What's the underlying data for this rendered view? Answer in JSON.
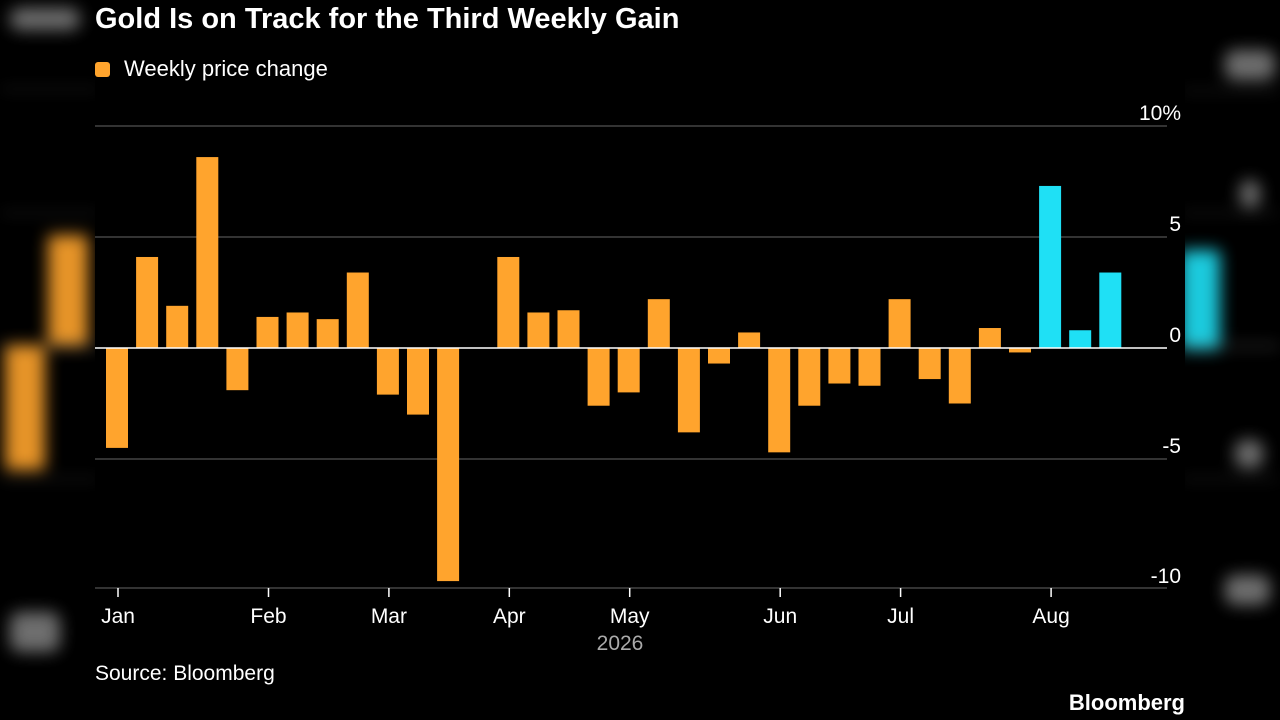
{
  "title": "Gold Is on Track for the Third Weekly Gain",
  "legend": {
    "label": "Weekly price change",
    "color": "#ffa42d"
  },
  "source": "Source: Bloomberg",
  "brand": "Bloomberg",
  "colors": {
    "positive_past": "#ffa42d",
    "highlight": "#1fe0f5",
    "grid": "#666666",
    "axis": "#ffffff",
    "text": "#ffffff",
    "muted_text": "#aaaaaa",
    "background": "#000000"
  },
  "chart_data": {
    "type": "bar",
    "title": "Gold Is on Track for the Third Weekly Gain",
    "xlabel": "2026",
    "ylabel": "",
    "ylim": [
      -10.5,
      10
    ],
    "y_ticks": [
      {
        "value": 10,
        "label": "10%"
      },
      {
        "value": 5,
        "label": "5"
      },
      {
        "value": 0,
        "label": "0"
      },
      {
        "value": -5,
        "label": "-5"
      },
      {
        "value": -10,
        "label": "-10"
      }
    ],
    "month_ticks": [
      {
        "label": "Jan",
        "week_index": 0
      },
      {
        "label": "Feb",
        "week_index": 5
      },
      {
        "label": "Mar",
        "week_index": 9
      },
      {
        "label": "Apr",
        "week_index": 13
      },
      {
        "label": "May",
        "week_index": 17
      },
      {
        "label": "Jun",
        "week_index": 22
      },
      {
        "label": "Jul",
        "week_index": 26
      },
      {
        "label": "Aug",
        "week_index": 31
      }
    ],
    "year_label": "2026",
    "grid": true,
    "legend_position": "top-left",
    "series": [
      {
        "name": "Weekly price change",
        "values": [
          -4.5,
          4.1,
          1.9,
          8.6,
          -1.9,
          1.4,
          1.6,
          1.3,
          3.4,
          -2.1,
          -3.0,
          -10.5,
          0.0,
          4.1,
          1.6,
          1.7,
          -2.6,
          -2.0,
          2.2,
          -3.8,
          -0.7,
          0.7,
          -4.7,
          -2.6,
          -1.6,
          -1.7,
          2.2,
          -1.4,
          -2.5,
          0.9,
          -0.2,
          7.3,
          0.8,
          3.4
        ],
        "highlight_from_index": 31
      }
    ]
  }
}
